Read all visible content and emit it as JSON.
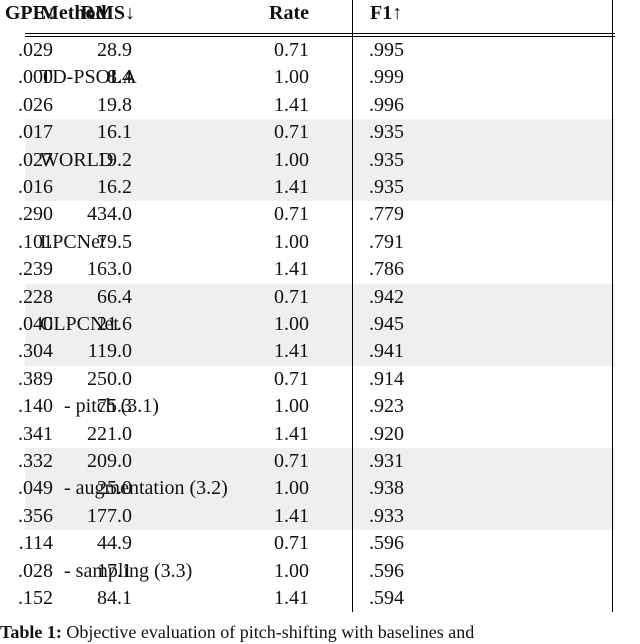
{
  "header": [
    "Method",
    "Rate",
    "F1↑",
    "RMS↓",
    "GPE↓"
  ],
  "groups": [
    {
      "method": "TD-PSOLA",
      "rows": [
        [
          "0.71",
          ".995",
          "28.9",
          ".029"
        ],
        [
          "1.00",
          ".999",
          "8.4",
          ".000"
        ],
        [
          "1.41",
          ".996",
          "19.8",
          ".026"
        ]
      ]
    },
    {
      "method": "WORLD",
      "rows": [
        [
          "0.71",
          ".935",
          "16.1",
          ".017"
        ],
        [
          "1.00",
          ".935",
          "19.2",
          ".027"
        ],
        [
          "1.41",
          ".935",
          "16.2",
          ".016"
        ]
      ]
    },
    {
      "method": "LPCNet",
      "rows": [
        [
          "0.71",
          ".779",
          "434.0",
          ".290"
        ],
        [
          "1.00",
          ".791",
          "79.5",
          ".101"
        ],
        [
          "1.41",
          ".786",
          "163.0",
          ".239"
        ]
      ]
    },
    {
      "method": "CLPCNet",
      "rows": [
        [
          "0.71",
          ".942",
          "66.4",
          ".228"
        ],
        [
          "1.00",
          ".945",
          "21.6",
          ".040"
        ],
        [
          "1.41",
          ".941",
          "119.0",
          ".304"
        ]
      ]
    },
    {
      "method": "- pitch (3.1)",
      "rows": [
        [
          "0.71",
          ".914",
          "250.0",
          ".389"
        ],
        [
          "1.00",
          ".923",
          "75.3",
          ".140"
        ],
        [
          "1.41",
          ".920",
          "221.0",
          ".341"
        ]
      ]
    },
    {
      "method": "- augmentation (3.2)",
      "rows": [
        [
          "0.71",
          ".931",
          "209.0",
          ".332"
        ],
        [
          "1.00",
          ".938",
          "25.0",
          ".049"
        ],
        [
          "1.41",
          ".933",
          "177.0",
          ".356"
        ]
      ]
    },
    {
      "method": "- sampling (3.3)",
      "rows": [
        [
          "0.71",
          ".596",
          "44.9",
          ".114"
        ],
        [
          "1.00",
          ".596",
          "17.1",
          ".028"
        ],
        [
          "1.41",
          ".594",
          "84.1",
          ".152"
        ]
      ]
    }
  ],
  "caption": {
    "label": "Table 1:",
    "text": "Objective evaluation of pitch-shifting with baselines and"
  }
}
